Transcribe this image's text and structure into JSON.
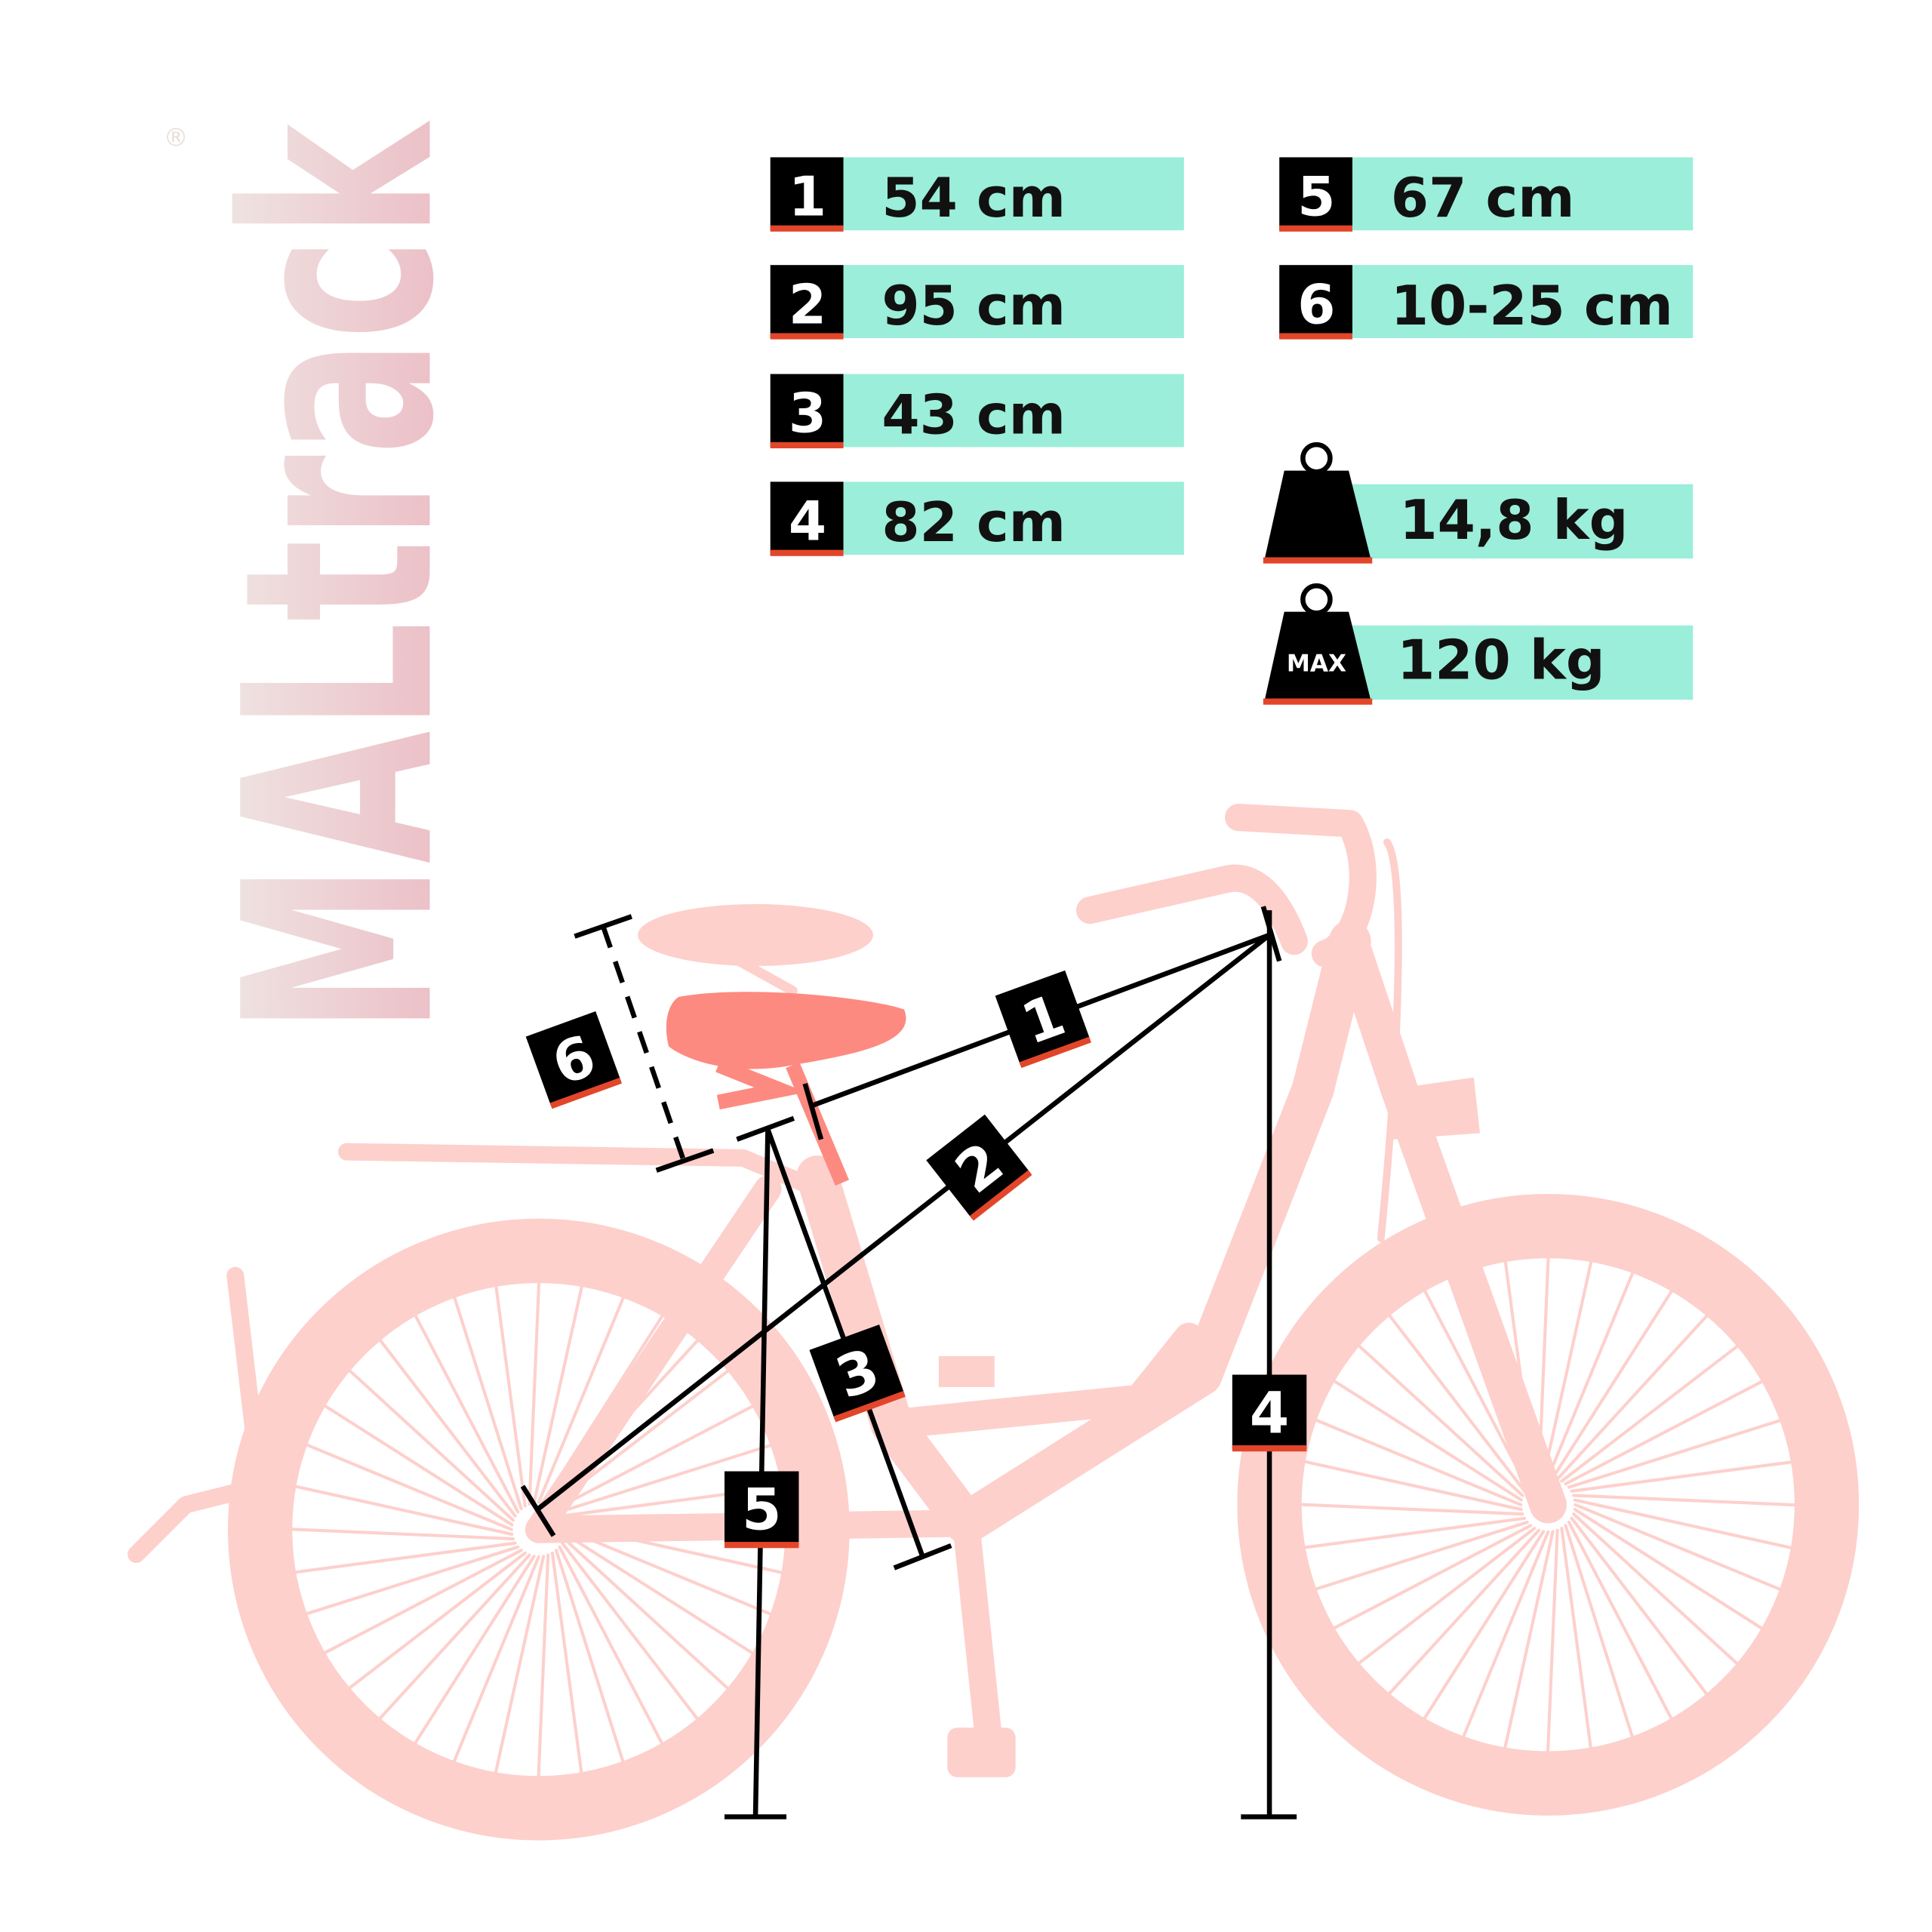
{
  "brand": {
    "logo_text": "MALtrack",
    "registered_mark": "®"
  },
  "colors": {
    "accent_teal": "#9beed9",
    "underline_red": "#e2462a",
    "bike_pink": "#fdd0cc",
    "saddle_red": "#fd8a80",
    "label_black": "#000000"
  },
  "measurements": [
    {
      "number": "1",
      "value": "54 cm"
    },
    {
      "number": "2",
      "value": "95 cm"
    },
    {
      "number": "3",
      "value": "43 cm"
    },
    {
      "number": "4",
      "value": "82 cm"
    },
    {
      "number": "5",
      "value": "67 cm"
    },
    {
      "number": "6",
      "value": "10-25 cm"
    }
  ],
  "weights": [
    {
      "icon": "weight-icon",
      "value": "14,8 kg"
    },
    {
      "icon": "max-weight-icon",
      "badge": "MAX",
      "value": "120 kg"
    }
  ]
}
